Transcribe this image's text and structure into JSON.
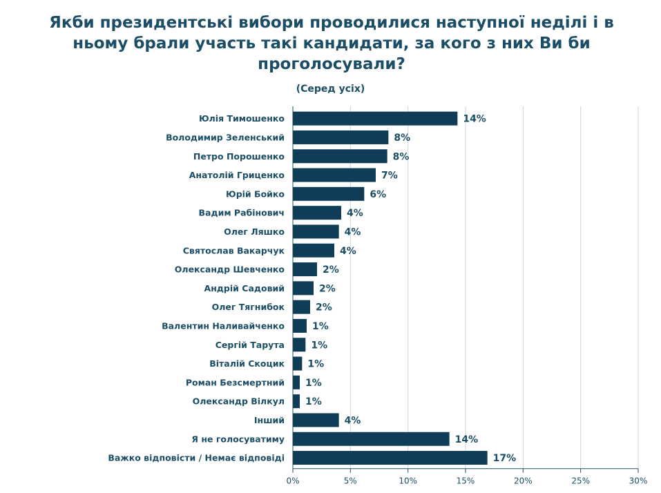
{
  "title": "Якби президентські вибори проводилися наступної неділі і в ньому брали участь такі кандидати, за кого з них Ви би проголосували?",
  "subtitle": "(Серед усіх)",
  "colors": {
    "bar": "#0f3d57",
    "text": "#1b4e66",
    "grid": "#c9d7de"
  },
  "chart_data": {
    "type": "bar",
    "orientation": "horizontal",
    "title": "Якби президентські вибори проводилися наступної неділі і в ньому брали участь такі кандидати, за кого з них Ви би проголосували?",
    "subtitle": "(Серед усіх)",
    "categories": [
      "Юлія Тимошенко",
      "Володимир Зеленський",
      "Петро Порошенко",
      "Анатолій Гриценко",
      "Юрій Бойко",
      "Вадим Рабінович",
      "Олег Ляшко",
      "Святослав Вакарчук",
      "Олександр Шевченко",
      "Андрій Садовий",
      "Олег Тягнибок",
      "Валентин Наливайченко",
      "Сергій Тарута",
      "Віталій Скоцик",
      "Роман Безсмертний",
      "Олександр Вілкул",
      "Інший",
      "Я не голосуватиму",
      "Важко відповісти / Немає відповіді"
    ],
    "values": [
      14.3,
      8.3,
      8.2,
      7.2,
      6.2,
      4.2,
      4.0,
      3.6,
      2.1,
      1.8,
      1.5,
      1.2,
      1.1,
      0.8,
      0.6,
      0.6,
      4.0,
      13.6,
      16.9
    ],
    "value_labels": [
      "14%",
      "8%",
      "8%",
      "7%",
      "6%",
      "4%",
      "4%",
      "4%",
      "2%",
      "2%",
      "2%",
      "1%",
      "1%",
      "1%",
      "1%",
      "1%",
      "4%",
      "14%",
      "17%"
    ],
    "xticks": [
      0,
      5,
      10,
      15,
      20,
      25,
      30
    ],
    "xtick_labels": [
      "0%",
      "5%",
      "10%",
      "15%",
      "20%",
      "25%",
      "30%"
    ],
    "xlim": [
      0,
      30
    ],
    "grid": true,
    "legend": "none"
  }
}
